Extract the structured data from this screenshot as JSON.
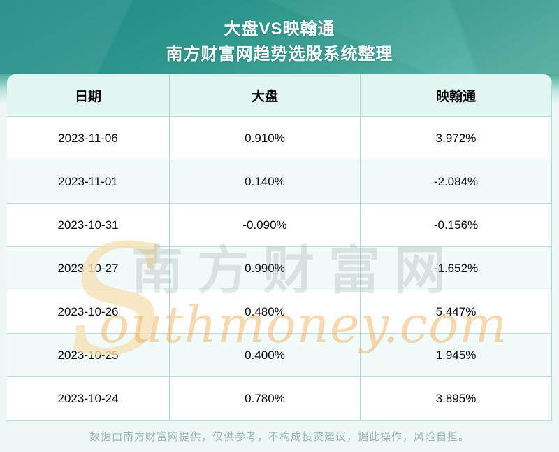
{
  "header": {
    "title_line1": "大盘VS映翰通",
    "title_line2": "南方财富网趋势选股系统整理"
  },
  "chart_data": {
    "type": "table",
    "title": "大盘VS映翰通",
    "subtitle": "南方财富网趋势选股系统整理",
    "columns": [
      "日期",
      "大盘",
      "映翰通"
    ],
    "rows": [
      [
        "2023-11-06",
        "0.910%",
        "3.972%"
      ],
      [
        "2023-11-01",
        "0.140%",
        "-2.084%"
      ],
      [
        "2023-10-31",
        "-0.090%",
        "-0.156%"
      ],
      [
        "2023-10-27",
        "0.990%",
        "-1.652%"
      ],
      [
        "2023-10-26",
        "0.480%",
        "5.447%"
      ],
      [
        "2023-10-25",
        "0.400%",
        "1.945%"
      ],
      [
        "2023-10-24",
        "0.780%",
        "3.895%"
      ]
    ],
    "x": [
      "2023-11-06",
      "2023-11-01",
      "2023-10-31",
      "2023-10-27",
      "2023-10-26",
      "2023-10-25",
      "2023-10-24"
    ],
    "series": [
      {
        "name": "大盘",
        "values": [
          0.91,
          0.14,
          -0.09,
          0.99,
          0.48,
          0.4,
          0.78
        ]
      },
      {
        "name": "映翰通",
        "values": [
          3.972,
          -2.084,
          -0.156,
          -1.652,
          5.447,
          1.945,
          3.895
        ]
      }
    ],
    "unit": "%",
    "legend_position": "none",
    "grid": true
  },
  "watermark": {
    "initial": "S",
    "cjk": "南方财富网",
    "latin": "outhmoney.com"
  },
  "footer": {
    "disclaimer": "数据由南方财富网提供，仅供参考，不构成投资建议，据此操作，风险自担。"
  },
  "colors": {
    "header_teal_dark": "#1d8a84",
    "header_teal_light": "#5fbaab",
    "table_header_bg": "#e1f5f1",
    "row_alt_bg": "#f0faf8",
    "divider": "#abdbd4",
    "page_bg": "#edf8f6",
    "footer_text": "#a3b1b3",
    "watermark_gold": "#f0a94f",
    "watermark_gray": "#8f9a98"
  }
}
